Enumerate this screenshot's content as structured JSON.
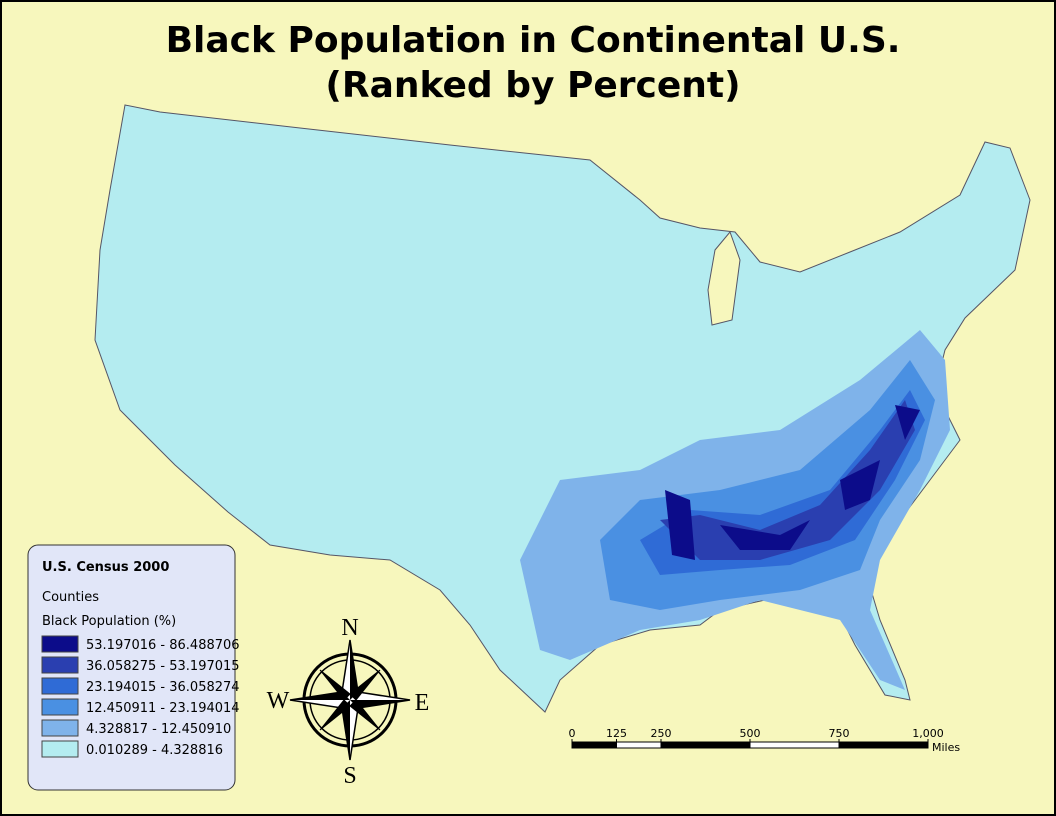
{
  "map": {
    "title_lines": [
      "Black Population in Continental U.S.",
      "(Ranked by Percent)"
    ],
    "legend": {
      "title": "U.S. Census 2000",
      "layer": "Counties",
      "field": "Black Population (%)",
      "classes": [
        {
          "label": "53.197016 - 86.488706",
          "color": "#0c0c8a"
        },
        {
          "label": "36.058275 - 53.197015",
          "color": "#2a3fb0"
        },
        {
          "label": "23.194015 - 36.058274",
          "color": "#2f6bd6"
        },
        {
          "label": "12.450911 - 23.194014",
          "color": "#4a90e2"
        },
        {
          "label": "4.328817 - 12.450910",
          "color": "#7fb3ea"
        },
        {
          "label": "0.010289 - 4.328816",
          "color": "#b4ecf0"
        }
      ]
    },
    "compass": {
      "n": "N",
      "s": "S",
      "e": "E",
      "w": "W"
    },
    "scale_bar": {
      "ticks": [
        0,
        125,
        250,
        500,
        750,
        {
          "value": 1000,
          "label": "1,000"
        }
      ],
      "unit": "Miles"
    }
  }
}
